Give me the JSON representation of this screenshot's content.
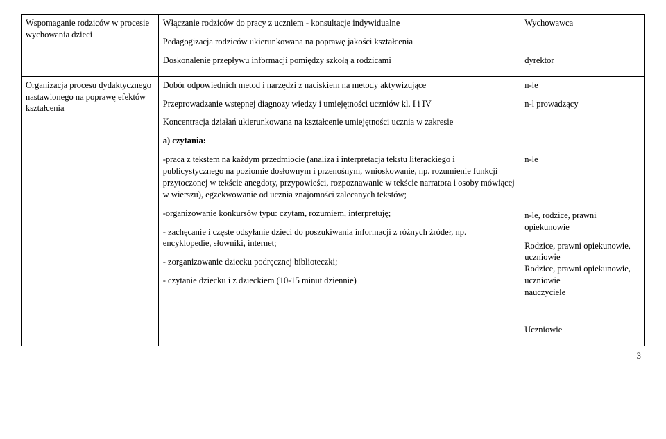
{
  "rows": [
    {
      "c1": [
        {
          "text": "Wspomaganie rodziców w procesie wychowania dzieci"
        }
      ],
      "c2": [
        {
          "text": "Włączanie rodziców do pracy z uczniem - konsultacje indywidualne"
        },
        {
          "text": "Pedagogizacja rodziców ukierunkowana na poprawę jakości kształcenia"
        },
        {
          "text": "Doskonalenie przepływu informacji pomiędzy szkołą a rodzicami"
        }
      ],
      "c3": [
        {
          "text": "Wychowawca"
        },
        {
          "text": ""
        },
        {
          "text": "dyrektor"
        }
      ]
    },
    {
      "c1": [
        {
          "text": "Organizacja procesu dydaktycznego nastawionego na poprawę efektów kształcenia"
        }
      ],
      "c2": [
        {
          "text": "Dobór odpowiednich metod i narzędzi z naciskiem na metody aktywizujące"
        },
        {
          "text": "Przeprowadzanie wstępnej diagnozy wiedzy i umiejętności uczniów kl. I i IV"
        },
        {
          "text": " Koncentracja działań ukierunkowana na kształcenie umiejętności ucznia w zakresie"
        },
        {
          "text": "a) czytania:",
          "bold": true
        },
        {
          "text": "-praca z tekstem na każdym przedmiocie (analiza i interpretacja tekstu literackiego i publicystycznego na poziomie dosłownym i przenośnym, wnioskowanie, np. rozumienie funkcji przytoczonej w tekście anegdoty, przypowieści, rozpoznawanie w tekście narratora i osoby mówiącej w wierszu), egzekwowanie od ucznia znajomości zalecanych tekstów;"
        },
        {
          "text": "-organizowanie konkursów typu: czytam, rozumiem, interpretuję;"
        },
        {
          "text": "- zachęcanie i częste odsyłanie dzieci do poszukiwania informacji z różnych źródeł, np. encyklopedie, słowniki, internet;"
        },
        {
          "text": "- zorganizowanie dziecku podręcznej biblioteczki;"
        },
        {
          "text": "- czytanie dziecku i z dzieckiem (10-15 minut dziennie)"
        }
      ],
      "c3": [
        {
          "text": "n-le"
        },
        {
          "text": "n-l  prowadzący"
        },
        {
          "text": ""
        },
        {
          "text": ""
        },
        {
          "text": "n-le"
        },
        {
          "text": ""
        },
        {
          "text": ""
        },
        {
          "text": "n-le, rodzice, prawni opiekunowie"
        },
        {
          "text": "Rodzice, prawni opiekunowie, uczniowie",
          "tight": true
        },
        {
          "text": "Rodzice, prawni opiekunowie, uczniowie",
          "tight": true
        },
        {
          "text": "nauczyciele"
        },
        {
          "text": ""
        },
        {
          "text": "Uczniowie"
        }
      ]
    }
  ],
  "pageNumber": "3"
}
